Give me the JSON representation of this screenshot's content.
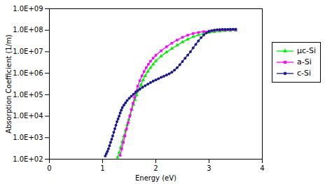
{
  "chart_data": {
    "type": "line",
    "xlabel": "Energy (eV)",
    "ylabel": "Absorption Coefficient (1/m)",
    "log": "y",
    "grid": false,
    "legend": "right",
    "xlim": [
      0,
      4
    ],
    "xticks": [
      0,
      1,
      2,
      3,
      4
    ],
    "ylim": [
      100.0,
      1000000000.0
    ],
    "yticks": [
      {
        "value": 100.0,
        "label": "1.0E+02"
      },
      {
        "value": 1000.0,
        "label": "1.0E+03"
      },
      {
        "value": 10000.0,
        "label": "1.0E+04"
      },
      {
        "value": 100000.0,
        "label": "1.0E+05"
      },
      {
        "value": 1000000.0,
        "label": "1.0E+06"
      },
      {
        "value": 10000000.0,
        "label": "1.0E+07"
      },
      {
        "value": 100000000.0,
        "label": "1.0E+08"
      },
      {
        "value": 1000000000.0,
        "label": "1.0E+09"
      }
    ],
    "series": [
      {
        "name": "μc-Si",
        "color": "#00ee00",
        "marker": "triangle",
        "x": [
          1.28,
          1.31,
          1.34,
          1.37,
          1.4,
          1.43,
          1.46,
          1.49,
          1.52,
          1.55,
          1.58,
          1.61,
          1.64,
          1.68,
          1.72,
          1.76,
          1.8,
          1.85,
          1.9,
          1.95,
          2.0,
          2.1,
          2.2,
          2.3,
          2.4,
          2.5,
          2.6,
          2.7,
          2.8,
          2.9,
          3.0,
          3.1,
          3.2,
          3.3,
          3.4,
          3.5
        ],
        "values": [
          120.0,
          200.0,
          350.0,
          650.0,
          1200.0,
          2200.0,
          4000.0,
          7000.0,
          12000.0,
          21000.0,
          35000.0,
          58000.0,
          95000.0,
          170000.0,
          290000.0,
          480000.0,
          750000.0,
          1200000.0,
          1800000.0,
          2600000.0,
          3700000.0,
          6200000.0,
          9500000.0,
          14000000.0,
          20000000.0,
          28000000.0,
          38000000.0,
          49000000.0,
          60000000.0,
          70000000.0,
          78000000.0,
          85000000.0,
          90000000.0,
          94000000.0,
          97000000.0,
          99000000.0
        ]
      },
      {
        "name": "a-Si",
        "color": "#ff00ff",
        "marker": "square",
        "x": [
          1.33,
          1.36,
          1.39,
          1.42,
          1.45,
          1.48,
          1.51,
          1.54,
          1.57,
          1.6,
          1.63,
          1.66,
          1.7,
          1.74,
          1.78,
          1.82,
          1.86,
          1.9,
          1.95,
          2.0,
          2.1,
          2.2,
          2.3,
          2.4,
          2.5,
          2.6,
          2.7,
          2.8,
          2.9,
          3.0,
          3.1,
          3.2,
          3.3,
          3.4,
          3.5
        ],
        "values": [
          150.0,
          300.0,
          600.0,
          1200.0,
          2500.0,
          5000.0,
          10000.0,
          20000.0,
          40000.0,
          75000.0,
          140000.0,
          250000.0,
          450000.0,
          750000.0,
          1200000.0,
          1800000.0,
          2600000.0,
          3600000.0,
          5000000.0,
          6800000.0,
          11000000.0,
          17000000.0,
          25000000.0,
          35000000.0,
          47000000.0,
          59000000.0,
          70000000.0,
          79000000.0,
          86000000.0,
          92000000.0,
          96000000.0,
          99000000.0,
          101000000.0,
          103000000.0,
          105000000.0
        ]
      },
      {
        "name": "c-Si",
        "color": "#1a1a8c",
        "marker": "circle",
        "x": [
          1.05,
          1.07,
          1.09,
          1.11,
          1.13,
          1.15,
          1.17,
          1.19,
          1.21,
          1.23,
          1.25,
          1.27,
          1.29,
          1.31,
          1.33,
          1.35,
          1.37,
          1.4,
          1.43,
          1.46,
          1.5,
          1.54,
          1.58,
          1.62,
          1.66,
          1.7,
          1.75,
          1.8,
          1.85,
          1.9,
          1.95,
          2.0,
          2.05,
          2.1,
          2.15,
          2.2,
          2.25,
          2.3,
          2.35,
          2.4,
          2.45,
          2.5,
          2.55,
          2.6,
          2.65,
          2.7,
          2.75,
          2.8,
          2.85,
          2.9,
          2.95,
          3.0,
          3.05,
          3.1,
          3.15,
          3.2,
          3.25,
          3.3,
          3.35,
          3.4,
          3.45,
          3.5
        ],
        "values": [
          140.0,
          180.0,
          230.0,
          300.0,
          420.0,
          600.0,
          850.0,
          1200.0,
          1800.0,
          2600.0,
          3800.0,
          5500.0,
          7500.0,
          10000.0,
          14000.0,
          19000.0,
          25000.0,
          33000.0,
          42000.0,
          53000.0,
          68000.0,
          85000.0,
          105000.0,
          128000.0,
          155000.0,
          185000.0,
          220000.0,
          260000.0,
          310000.0,
          365000.0,
          425000.0,
          490000.0,
          560000.0,
          640000.0,
          720000.0,
          820000.0,
          930000.0,
          1100000.0,
          1400000.0,
          1800000.0,
          2500000.0,
          3500000.0,
          5000000.0,
          7000000.0,
          10000000.0,
          15000000.0,
          22000000.0,
          32000000.0,
          45000000.0,
          60000000.0,
          75000000.0,
          88000000.0,
          96000000.0,
          102000000.0,
          106000000.0,
          108000000.0,
          109000000.0,
          110000000.0,
          110500000.0,
          111000000.0,
          111500000.0,
          112000000.0
        ]
      }
    ]
  }
}
